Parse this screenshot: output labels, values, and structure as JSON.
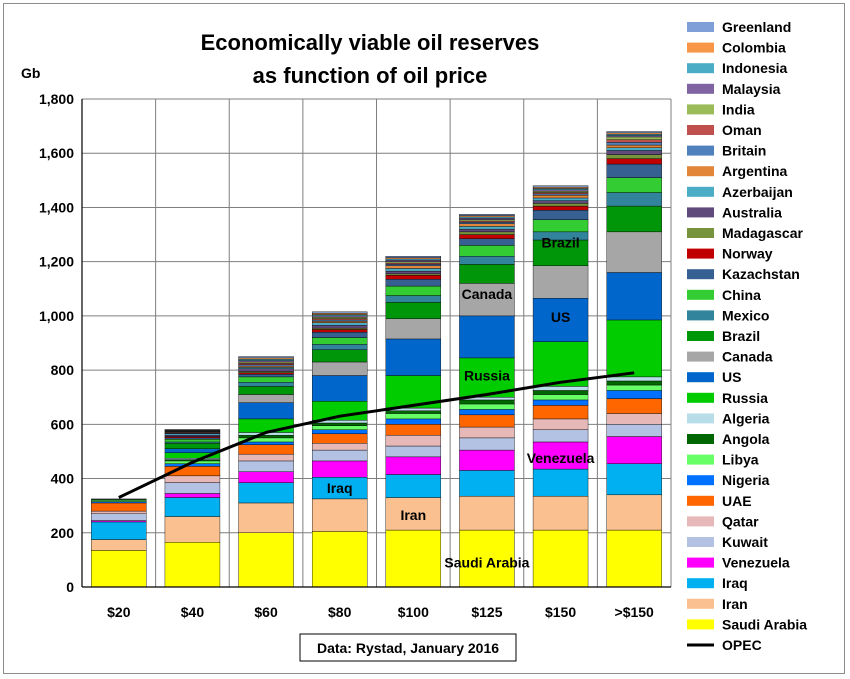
{
  "chart_data": {
    "type": "bar",
    "stacked": true,
    "title_lines": [
      "Economically viable oil reserves",
      "as function of oil price"
    ],
    "ylabel": "Gb",
    "ylim": [
      0,
      1800
    ],
    "yticks": [
      "0",
      "200",
      "400",
      "600",
      "800",
      "1,000",
      "1,200",
      "1,400",
      "1,600",
      "1,800"
    ],
    "grid": true,
    "categories": [
      "$20",
      "$40",
      "$60",
      "$80",
      "$100",
      "$125",
      "$150",
      ">$150"
    ],
    "source_note": "Data: Rystad, January 2016",
    "legend_position": "right",
    "series": [
      {
        "name": "Saudi Arabia",
        "color": "#ffff00",
        "values": [
          135,
          165,
          200,
          205,
          210,
          210,
          210,
          210
        ]
      },
      {
        "name": "Iran",
        "color": "#fac090",
        "values": [
          40,
          95,
          110,
          120,
          120,
          125,
          125,
          130
        ]
      },
      {
        "name": "Iraq",
        "color": "#00b0f0",
        "values": [
          65,
          70,
          75,
          80,
          85,
          95,
          100,
          115
        ]
      },
      {
        "name": "Venezuela",
        "color": "#ff00ff",
        "values": [
          5,
          15,
          40,
          60,
          65,
          75,
          100,
          100
        ]
      },
      {
        "name": "Kuwait",
        "color": "#b3c1e3",
        "values": [
          25,
          40,
          40,
          40,
          40,
          45,
          45,
          45
        ]
      },
      {
        "name": "Qatar",
        "color": "#e6b9b8",
        "values": [
          10,
          25,
          25,
          25,
          40,
          40,
          40,
          40
        ]
      },
      {
        "name": "UAE",
        "color": "#ff6600",
        "values": [
          30,
          35,
          35,
          35,
          40,
          45,
          50,
          55
        ]
      },
      {
        "name": "Nigeria",
        "color": "#0070ff",
        "values": [
          5,
          10,
          10,
          15,
          20,
          20,
          20,
          30
        ]
      },
      {
        "name": "Libya",
        "color": "#66ff66",
        "values": [
          5,
          10,
          15,
          15,
          20,
          20,
          20,
          20
        ]
      },
      {
        "name": "Angola",
        "color": "#006600",
        "values": [
          3,
          5,
          10,
          10,
          10,
          15,
          15,
          15
        ]
      },
      {
        "name": "Algeria",
        "color": "#b7dee8",
        "values": [
          2,
          5,
          10,
          10,
          10,
          10,
          15,
          15
        ]
      },
      {
        "name": "Russia",
        "color": "#00cc00",
        "values": [
          0,
          20,
          50,
          70,
          120,
          145,
          165,
          210
        ]
      },
      {
        "name": "US",
        "color": "#0066cc",
        "values": [
          0,
          15,
          60,
          95,
          135,
          155,
          160,
          175
        ]
      },
      {
        "name": "Canada",
        "color": "#a6a6a6",
        "values": [
          0,
          0,
          30,
          50,
          75,
          120,
          120,
          150
        ]
      },
      {
        "name": "Brazil",
        "color": "#00960a",
        "values": [
          0,
          20,
          30,
          45,
          60,
          70,
          95,
          95
        ]
      },
      {
        "name": "Mexico",
        "color": "#31849b",
        "values": [
          0,
          5,
          15,
          20,
          25,
          30,
          30,
          50
        ]
      },
      {
        "name": "China",
        "color": "#33cc33",
        "values": [
          0,
          10,
          20,
          25,
          35,
          40,
          45,
          55
        ]
      },
      {
        "name": "Kazachstan",
        "color": "#376092",
        "values": [
          0,
          5,
          10,
          20,
          25,
          25,
          35,
          50
        ]
      },
      {
        "name": "Norway",
        "color": "#c00000",
        "values": [
          0,
          5,
          5,
          10,
          15,
          15,
          15,
          20
        ]
      },
      {
        "name": "Madagascar",
        "color": "#77933c",
        "values": [
          0,
          0,
          5,
          5,
          5,
          10,
          10,
          15
        ]
      },
      {
        "name": "Australia",
        "color": "#604a7b",
        "values": [
          0,
          5,
          10,
          10,
          10,
          10,
          10,
          15
        ]
      },
      {
        "name": "Azerbaijan",
        "color": "#4bacc6",
        "values": [
          0,
          5,
          5,
          10,
          10,
          10,
          10,
          10
        ]
      },
      {
        "name": "Argentina",
        "color": "#e2873a",
        "values": [
          0,
          0,
          5,
          5,
          10,
          10,
          10,
          10
        ]
      },
      {
        "name": "Britain",
        "color": "#4f81bd",
        "values": [
          0,
          3,
          5,
          5,
          5,
          5,
          5,
          10
        ]
      },
      {
        "name": "Oman",
        "color": "#c0504d",
        "values": [
          0,
          3,
          5,
          5,
          5,
          5,
          5,
          10
        ]
      },
      {
        "name": "India",
        "color": "#9bbb59",
        "values": [
          0,
          2,
          5,
          5,
          5,
          5,
          5,
          10
        ]
      },
      {
        "name": "Malaysia",
        "color": "#8064a2",
        "values": [
          0,
          2,
          5,
          5,
          5,
          5,
          5,
          5
        ]
      },
      {
        "name": "Indonesia",
        "color": "#4bacc6",
        "values": [
          0,
          2,
          5,
          5,
          5,
          5,
          5,
          5
        ]
      },
      {
        "name": "Colombia",
        "color": "#f79646",
        "values": [
          0,
          2,
          5,
          5,
          5,
          5,
          5,
          5
        ]
      },
      {
        "name": "Greenland",
        "color": "#7f9fd8",
        "values": [
          0,
          2,
          5,
          5,
          5,
          5,
          5,
          5
        ]
      }
    ],
    "line_series": {
      "name": "OPEC",
      "color": "#000000",
      "values": [
        330,
        460,
        570,
        630,
        670,
        710,
        755,
        790
      ]
    },
    "annotations": [
      {
        "text": "Saudi Arabia",
        "category": "$125",
        "value": 90
      },
      {
        "text": "Iran",
        "category": "$100",
        "value": 265
      },
      {
        "text": "Iraq",
        "category": "$80",
        "value": 365
      },
      {
        "text": "Venezuela",
        "category": "$150",
        "value": 475
      },
      {
        "text": "Russia",
        "category": "$125",
        "value": 780
      },
      {
        "text": "Canada",
        "category": "$125",
        "value": 1080
      },
      {
        "text": "US",
        "category": "$150",
        "value": 995
      },
      {
        "text": "Brazil",
        "category": "$150",
        "value": 1270
      }
    ]
  }
}
